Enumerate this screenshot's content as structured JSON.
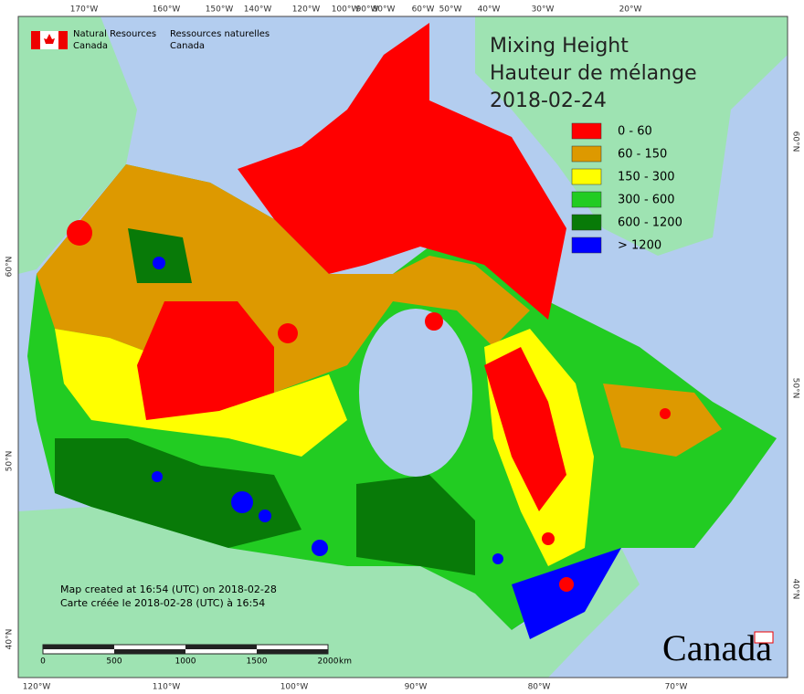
{
  "header": {
    "org_en": [
      "Natural Resources",
      "Canada"
    ],
    "org_fr": [
      "Ressources naturelles",
      "Canada"
    ]
  },
  "title": [
    "Mixing Height",
    "Hauteur de mélange",
    "2018-02-24"
  ],
  "legend": [
    {
      "label": "0 - 60",
      "color": "#ff0000"
    },
    {
      "label": "60 - 150",
      "color": "#dd9900"
    },
    {
      "label": "150 - 300",
      "color": "#ffff00"
    },
    {
      "label": "300 - 600",
      "color": "#22cc22"
    },
    {
      "label": "600 - 1200",
      "color": "#087a08"
    },
    {
      "label": "> 1200",
      "color": "#0000ff"
    }
  ],
  "graticule": {
    "top": [
      "170°W",
      "160°W",
      "150°W",
      "140°W",
      "120°W",
      "100°W",
      "90°W",
      "80°W",
      "60°W",
      "50°W",
      "40°W",
      "30°W",
      "20°W"
    ],
    "bottom": [
      "120°W",
      "110°W",
      "100°W",
      "90°W",
      "80°W",
      "70°W"
    ],
    "left": [
      "60°N",
      "50°N",
      "40°N"
    ],
    "right": [
      "60°N",
      "50°N",
      "40°N"
    ]
  },
  "credits": [
    "Map created at 16:54 (UTC) on 2018-02-28",
    "Carte créée le 2018-02-28 (UTC) à 16:54"
  ],
  "scale_bar": {
    "labels": [
      0,
      500,
      1000,
      1500,
      2000
    ],
    "unit": "km"
  },
  "wordmark": "Canada"
}
